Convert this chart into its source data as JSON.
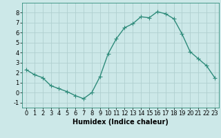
{
  "x": [
    0,
    1,
    2,
    3,
    4,
    5,
    6,
    7,
    8,
    9,
    10,
    11,
    12,
    13,
    14,
    15,
    16,
    17,
    18,
    19,
    20,
    21,
    22,
    23
  ],
  "y": [
    2.3,
    1.8,
    1.5,
    0.7,
    0.4,
    0.1,
    -0.3,
    -0.6,
    0.0,
    1.6,
    3.9,
    5.4,
    6.5,
    6.9,
    7.6,
    7.5,
    8.1,
    7.9,
    7.4,
    5.9,
    4.1,
    3.4,
    2.7,
    1.5
  ],
  "line_color": "#2e8b7a",
  "bg_color": "#cce8e8",
  "grid_color": "#b0d0d0",
  "xlabel": "Humidex (Indice chaleur)",
  "xlabel_fontsize": 7,
  "xlim": [
    -0.5,
    23.5
  ],
  "ylim": [
    -1.5,
    9.0
  ],
  "yticks": [
    -1,
    0,
    1,
    2,
    3,
    4,
    5,
    6,
    7,
    8
  ],
  "xticks": [
    0,
    1,
    2,
    3,
    4,
    5,
    6,
    7,
    8,
    9,
    10,
    11,
    12,
    13,
    14,
    15,
    16,
    17,
    18,
    19,
    20,
    21,
    22,
    23
  ],
  "tick_fontsize": 6,
  "marker": "+",
  "markersize": 4,
  "linewidth": 1.0
}
